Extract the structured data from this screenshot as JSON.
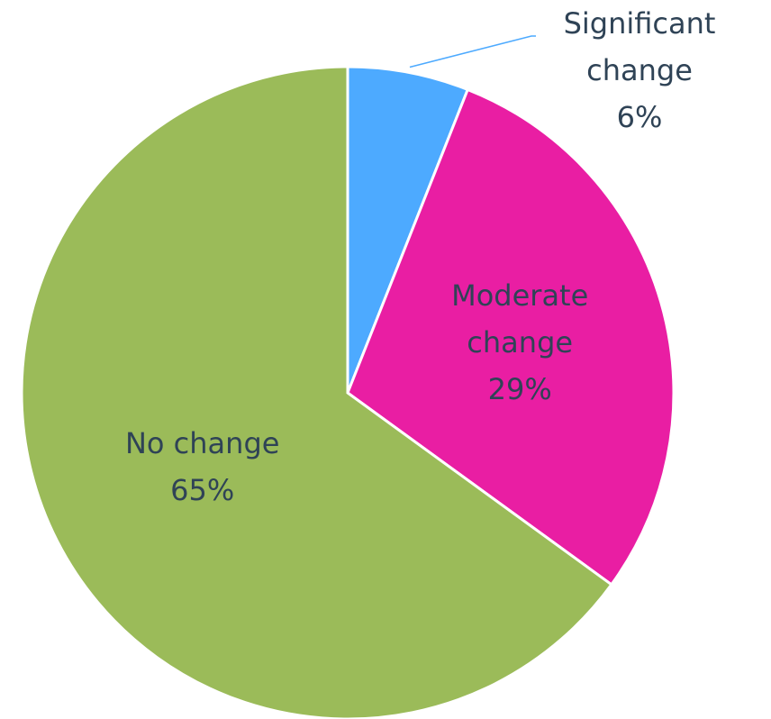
{
  "chart_data": {
    "type": "pie",
    "categories": [
      "Significant change",
      "Moderate change",
      "No change"
    ],
    "values": [
      6,
      29,
      65
    ],
    "value_labels": [
      "6%",
      "29%",
      "65%"
    ],
    "colors": [
      "#4daaff",
      "#e91ea3",
      "#9bbb59"
    ]
  }
}
